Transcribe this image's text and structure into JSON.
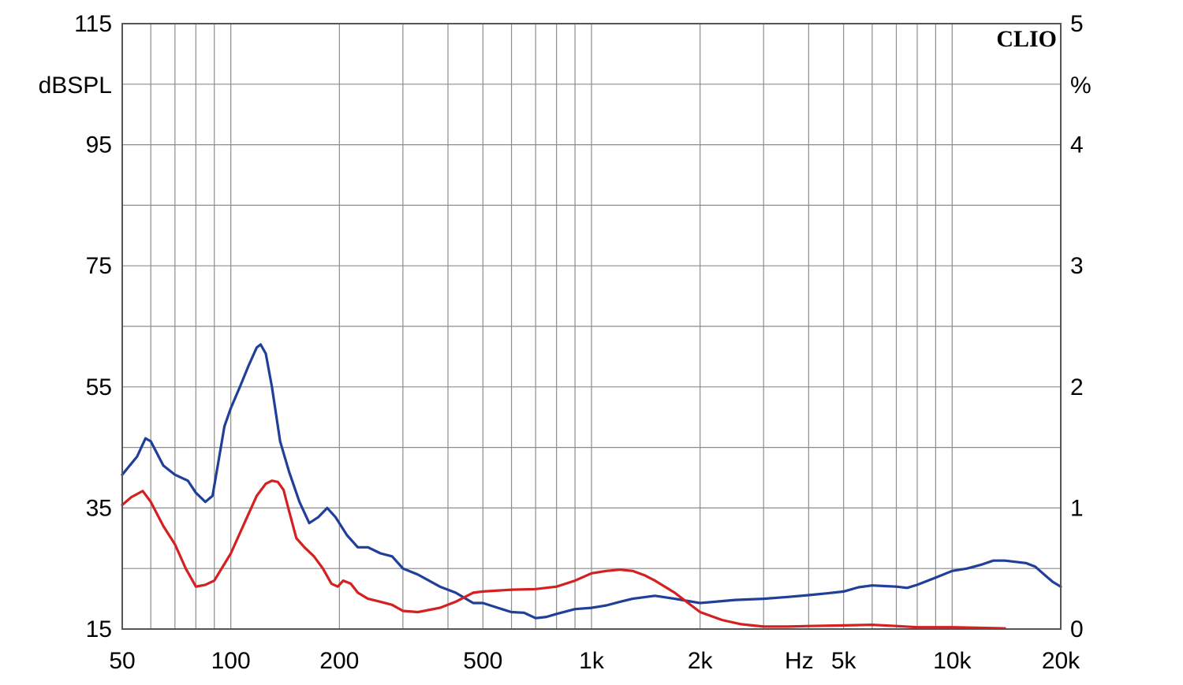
{
  "chart_data": {
    "type": "line",
    "watermark": "CLIO",
    "x_scale": "log",
    "xlim": [
      50,
      20000
    ],
    "ylim_left": [
      15,
      115
    ],
    "ylim_right": [
      0,
      5
    ],
    "left_unit": "dBSPL",
    "right_unit": "%",
    "x_unit": "Hz",
    "grid": true,
    "x_ticks": [
      {
        "value": 50,
        "label": "50"
      },
      {
        "value": 100,
        "label": "100"
      },
      {
        "value": 200,
        "label": "200"
      },
      {
        "value": 500,
        "label": "500"
      },
      {
        "value": 1000,
        "label": "1k"
      },
      {
        "value": 2000,
        "label": "2k"
      },
      {
        "value": 5000,
        "label": "5k"
      },
      {
        "value": 10000,
        "label": "10k"
      },
      {
        "value": 20000,
        "label": "20k"
      }
    ],
    "y_ticks_left": [
      {
        "value": 115,
        "label": "115"
      },
      {
        "value": 95,
        "label": "95"
      },
      {
        "value": 75,
        "label": "75"
      },
      {
        "value": 55,
        "label": "55"
      },
      {
        "value": 35,
        "label": "35"
      },
      {
        "value": 15,
        "label": "15"
      }
    ],
    "y_ticks_right": [
      {
        "value": 5,
        "label": "5"
      },
      {
        "value": 4,
        "label": "4"
      },
      {
        "value": 3,
        "label": "3"
      },
      {
        "value": 2,
        "label": "2"
      },
      {
        "value": 1,
        "label": "1"
      },
      {
        "value": 0,
        "label": "0"
      }
    ],
    "series": [
      {
        "color": "#1f3f99",
        "axis": "left",
        "points": [
          [
            50,
            40.5
          ],
          [
            55,
            43.5
          ],
          [
            58,
            46.5
          ],
          [
            60,
            46
          ],
          [
            65,
            42
          ],
          [
            70,
            40.5
          ],
          [
            76,
            39.5
          ],
          [
            80,
            37.5
          ],
          [
            85,
            36
          ],
          [
            89,
            37
          ],
          [
            92,
            42
          ],
          [
            96,
            48.5
          ],
          [
            100,
            51.5
          ],
          [
            106,
            55
          ],
          [
            112,
            58.5
          ],
          [
            118,
            61.5
          ],
          [
            121,
            62
          ],
          [
            125,
            60.5
          ],
          [
            130,
            55
          ],
          [
            137,
            46
          ],
          [
            145,
            41
          ],
          [
            155,
            36
          ],
          [
            165,
            32.5
          ],
          [
            175,
            33.5
          ],
          [
            185,
            35
          ],
          [
            195,
            33.5
          ],
          [
            210,
            30.5
          ],
          [
            225,
            28.5
          ],
          [
            240,
            28.5
          ],
          [
            260,
            27.5
          ],
          [
            280,
            27
          ],
          [
            300,
            25
          ],
          [
            330,
            24
          ],
          [
            380,
            22
          ],
          [
            420,
            21
          ],
          [
            470,
            19.3
          ],
          [
            500,
            19.3
          ],
          [
            550,
            18.5
          ],
          [
            600,
            17.8
          ],
          [
            650,
            17.7
          ],
          [
            700,
            16.8
          ],
          [
            750,
            17
          ],
          [
            800,
            17.5
          ],
          [
            900,
            18.3
          ],
          [
            1000,
            18.5
          ],
          [
            1100,
            18.9
          ],
          [
            1200,
            19.5
          ],
          [
            1300,
            20
          ],
          [
            1500,
            20.5
          ],
          [
            1700,
            20
          ],
          [
            2000,
            19.3
          ],
          [
            2200,
            19.5
          ],
          [
            2500,
            19.8
          ],
          [
            3000,
            20
          ],
          [
            3500,
            20.3
          ],
          [
            4000,
            20.6
          ],
          [
            4500,
            20.9
          ],
          [
            5000,
            21.2
          ],
          [
            5500,
            21.9
          ],
          [
            6000,
            22.2
          ],
          [
            6500,
            22.1
          ],
          [
            7000,
            22
          ],
          [
            7500,
            21.8
          ],
          [
            8000,
            22.3
          ],
          [
            9000,
            23.5
          ],
          [
            10000,
            24.6
          ],
          [
            11000,
            25
          ],
          [
            12000,
            25.6
          ],
          [
            13000,
            26.3
          ],
          [
            14000,
            26.3
          ],
          [
            15000,
            26.1
          ],
          [
            16000,
            25.9
          ],
          [
            17000,
            25.3
          ],
          [
            18000,
            24
          ],
          [
            19000,
            22.8
          ],
          [
            20000,
            22
          ]
        ]
      },
      {
        "color": "#d42020",
        "axis": "left",
        "points": [
          [
            50,
            35.5
          ],
          [
            53,
            36.8
          ],
          [
            57,
            37.8
          ],
          [
            60,
            36
          ],
          [
            65,
            32
          ],
          [
            70,
            29
          ],
          [
            75,
            25
          ],
          [
            80,
            22
          ],
          [
            85,
            22.3
          ],
          [
            90,
            23
          ],
          [
            100,
            27.5
          ],
          [
            110,
            33
          ],
          [
            118,
            37
          ],
          [
            125,
            39
          ],
          [
            130,
            39.5
          ],
          [
            135,
            39.3
          ],
          [
            140,
            38
          ],
          [
            145,
            34.5
          ],
          [
            152,
            30
          ],
          [
            160,
            28.5
          ],
          [
            170,
            27
          ],
          [
            180,
            25
          ],
          [
            190,
            22.5
          ],
          [
            198,
            22
          ],
          [
            205,
            23
          ],
          [
            215,
            22.5
          ],
          [
            225,
            21
          ],
          [
            240,
            20
          ],
          [
            260,
            19.5
          ],
          [
            280,
            19
          ],
          [
            300,
            18
          ],
          [
            330,
            17.8
          ],
          [
            380,
            18.5
          ],
          [
            420,
            19.5
          ],
          [
            470,
            21
          ],
          [
            500,
            21.2
          ],
          [
            600,
            21.5
          ],
          [
            700,
            21.6
          ],
          [
            800,
            22
          ],
          [
            900,
            23
          ],
          [
            1000,
            24.2
          ],
          [
            1100,
            24.6
          ],
          [
            1200,
            24.8
          ],
          [
            1300,
            24.6
          ],
          [
            1400,
            23.9
          ],
          [
            1500,
            23
          ],
          [
            1700,
            21
          ],
          [
            2000,
            17.8
          ],
          [
            2300,
            16.5
          ],
          [
            2600,
            15.8
          ],
          [
            3000,
            15.4
          ],
          [
            3500,
            15.4
          ],
          [
            4000,
            15.5
          ],
          [
            5000,
            15.6
          ],
          [
            6000,
            15.7
          ],
          [
            7000,
            15.5
          ],
          [
            8000,
            15.3
          ],
          [
            10000,
            15.3
          ],
          [
            12000,
            15.2
          ],
          [
            14000,
            15.1
          ]
        ]
      }
    ]
  }
}
